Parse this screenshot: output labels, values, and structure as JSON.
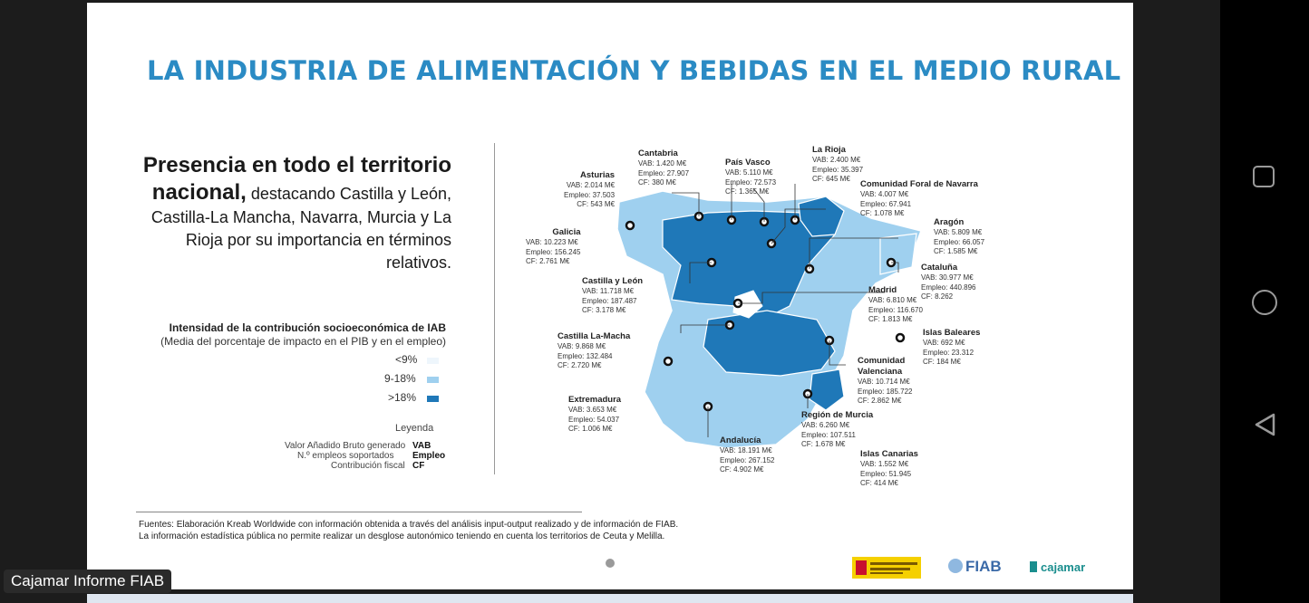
{
  "slide": {
    "title": "LA INDUSTRIA DE ALIMENTACIÓN Y BEBIDAS EN EL MEDIO RURAL",
    "headline_bold": "Presencia en todo el territorio nacional,",
    "headline_rest": "destacando Castilla y León, Castilla-La Mancha, Navarra, Murcia y La Rioja por su importancia en términos relativos."
  },
  "legend": {
    "title": "Intensidad de la contribución  socioeconómica de IAB",
    "subtitle": "(Media del porcentaje de impacto en el PIB y en el empleo)",
    "items": [
      {
        "label": "<9%",
        "color": "#eef6fc"
      },
      {
        "label": "9-18%",
        "color": "#9fd0ef"
      },
      {
        "label": ">18%",
        "color": "#1f78b8"
      }
    ],
    "leyenda_label": "Leyenda",
    "abbreviations": [
      {
        "text": "Valor Añadido Bruto generado",
        "abbr": "VAB"
      },
      {
        "text": "N.º empleos soportados",
        "abbr": "Empleo"
      },
      {
        "text": "Contribución fiscal",
        "abbr": "CF"
      }
    ]
  },
  "regions": [
    {
      "name": "Asturias",
      "vab": "VAB: 2.014 M€",
      "empleo": "Empleo: 37.503",
      "cf": "CF: 543 M€"
    },
    {
      "name": "Cantabria",
      "vab": "VAB: 1.420 M€",
      "empleo": "Empleo: 27.907",
      "cf": "CF: 380 M€"
    },
    {
      "name": "País Vasco",
      "vab": "VAB: 5.110 M€",
      "empleo": "Empleo: 72.573",
      "cf": "CF: 1.365 M€"
    },
    {
      "name": "La Rioja",
      "vab": "VAB: 2.400 M€",
      "empleo": "Empleo: 35.397",
      "cf": "CF: 645 M€"
    },
    {
      "name": "Comunidad Foral de Navarra",
      "vab": "VAB: 4.007 M€",
      "empleo": "Empleo: 67.941",
      "cf": "CF: 1.078 M€"
    },
    {
      "name": "Galicia",
      "vab": "VAB: 10.223 M€",
      "empleo": "Empleo: 156.245",
      "cf": "CF: 2.761 M€"
    },
    {
      "name": "Aragón",
      "vab": "VAB: 5.809 M€",
      "empleo": "Empleo: 66.057",
      "cf": "CF: 1.585 M€"
    },
    {
      "name": "Cataluña",
      "vab": "VAB: 30.977 M€",
      "empleo": "Empleo: 440.896",
      "cf": "CF: 8.262"
    },
    {
      "name": "Castilla y León",
      "vab": "VAB: 11.718 M€",
      "empleo": "Empleo: 187.487",
      "cf": "CF: 3.178 M€"
    },
    {
      "name": "Madrid",
      "vab": "VAB: 6.810 M€",
      "empleo": "Empleo: 116.670",
      "cf": "CF: 1.813 M€"
    },
    {
      "name": "Islas Baleares",
      "vab": "VAB: 692 M€",
      "empleo": "Empleo: 23.312",
      "cf": "CF: 184 M€"
    },
    {
      "name": "Castilla La-Macha",
      "vab": "VAB: 9.868 M€",
      "empleo": "Empleo: 132.484",
      "cf": "CF: 2.720 M€"
    },
    {
      "name": "Comunidad Valenciana",
      "vab": "VAB: 10.714 M€",
      "empleo": "Empleo: 185.722",
      "cf": "CF: 2.862 M€"
    },
    {
      "name": "Extremadura",
      "vab": "VAB: 3.653 M€",
      "empleo": "Empleo: 54.037",
      "cf": "CF: 1.006 M€"
    },
    {
      "name": "Región de Murcia",
      "vab": "VAB: 6.260  M€",
      "empleo": "Empleo: 107.511",
      "cf": "CF: 1.678 M€"
    },
    {
      "name": "Andalucía",
      "vab": "VAB: 18.191 M€",
      "empleo": "Empleo: 267.152",
      "cf": "CF: 4.902 M€"
    },
    {
      "name": "Islas Canarias",
      "vab": "VAB: 1.552 M€",
      "empleo": "Empleo: 51.945",
      "cf": "CF: 414 M€"
    }
  ],
  "footnotes": {
    "line1": "Fuentes: Elaboración Kreab Worldwide con información obtenida a través del análisis input-output realizado y de información de FIAB.",
    "line2": "La información estadística pública no permite realizar un desglose autonómico teniendo en cuenta los territorios de Ceuta y Melilla."
  },
  "logos": {
    "fiab": "FIAB",
    "cajamar": "cajamar"
  },
  "caption": "Cajamar Informe FIAB"
}
